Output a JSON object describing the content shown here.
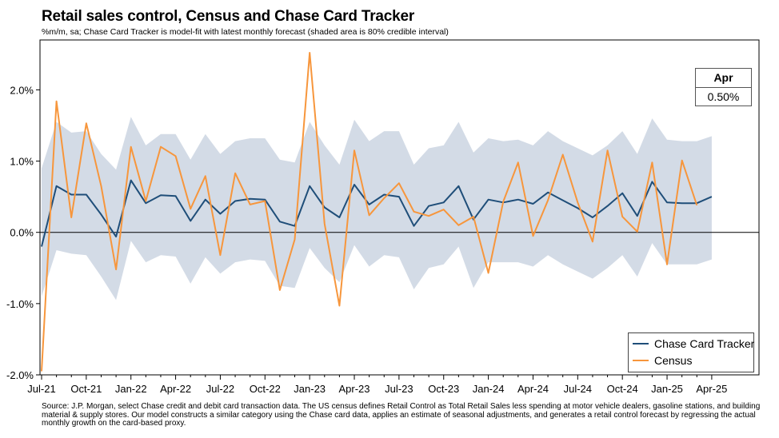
{
  "title": "Retail sales control, Census and Chase Card Tracker",
  "subtitle": "%m/m, sa; Chase Card Tracker is model-fit with latest monthly forecast (shaded area is 80% credible interval)",
  "source": "Source: J.P. Morgan, select Chase credit and debit card transaction data. The US census defines Retail Control as Total Retail Sales less spending at motor vehicle dealers, gasoline stations, and building material & supply stores. Our model constructs a similar category using the Chase card data, applies an estimate of seasonal adjustments, and generates a retail control forecast by regressing the actual monthly growth on the card-based proxy.",
  "callout": {
    "label": "Apr",
    "value": "0.50%"
  },
  "legend": {
    "tracker": "Chase Card Tracker",
    "census": "Census"
  },
  "colors": {
    "tracker": "#1f4e79",
    "census": "#f7963c",
    "band": "#d3dbe6"
  },
  "chart_data": {
    "type": "line",
    "title": "Retail sales control, Census and Chase Card Tracker",
    "subtitle": "%m/m, sa; Chase Card Tracker is model-fit with latest monthly forecast (shaded area is 80% credible interval)",
    "xlabel": "",
    "ylabel": "",
    "ylim": [
      -2.0,
      2.7
    ],
    "yticks": [
      -2.0,
      -1.0,
      0.0,
      1.0,
      2.0
    ],
    "ytick_labels": [
      "-2.0%",
      "-1.0%",
      "0.0%",
      "1.0%",
      "2.0%"
    ],
    "xtick_labels": [
      "Jul-21",
      "Oct-21",
      "Jan-22",
      "Apr-22",
      "Jul-22",
      "Oct-22",
      "Jan-23",
      "Apr-23",
      "Jul-23",
      "Oct-23",
      "Jan-24",
      "Apr-24",
      "Jul-24",
      "Oct-24",
      "Jan-25",
      "Apr-25"
    ],
    "x": [
      "Jul-21",
      "Aug-21",
      "Sep-21",
      "Oct-21",
      "Nov-21",
      "Dec-21",
      "Jan-22",
      "Feb-22",
      "Mar-22",
      "Apr-22",
      "May-22",
      "Jun-22",
      "Jul-22",
      "Aug-22",
      "Sep-22",
      "Oct-22",
      "Nov-22",
      "Dec-22",
      "Jan-23",
      "Feb-23",
      "Mar-23",
      "Apr-23",
      "May-23",
      "Jun-23",
      "Jul-23",
      "Aug-23",
      "Sep-23",
      "Oct-23",
      "Nov-23",
      "Dec-23",
      "Jan-24",
      "Feb-24",
      "Mar-24",
      "Apr-24",
      "May-24",
      "Jun-24",
      "Jul-24",
      "Aug-24",
      "Sep-24",
      "Oct-24",
      "Nov-24",
      "Dec-24",
      "Jan-25",
      "Feb-25",
      "Mar-25",
      "Apr-25"
    ],
    "series": [
      {
        "name": "Chase Card Tracker",
        "values": [
          -0.2,
          0.65,
          0.53,
          0.53,
          0.25,
          -0.06,
          0.73,
          0.41,
          0.52,
          0.51,
          0.16,
          0.46,
          0.26,
          0.44,
          0.47,
          0.46,
          0.15,
          0.09,
          0.65,
          0.35,
          0.21,
          0.67,
          0.39,
          0.53,
          0.5,
          0.09,
          0.37,
          0.42,
          0.65,
          0.18,
          0.46,
          0.42,
          0.46,
          0.4,
          0.56,
          0.45,
          0.34,
          0.21,
          0.37,
          0.55,
          0.23,
          0.71,
          0.42,
          0.41,
          0.41,
          0.5
        ]
      },
      {
        "name": "Census",
        "values": [
          -1.95,
          1.84,
          0.21,
          1.53,
          0.65,
          -0.52,
          1.2,
          0.44,
          1.2,
          1.07,
          0.33,
          0.79,
          -0.32,
          0.83,
          0.39,
          0.44,
          -0.81,
          -0.1,
          2.52,
          0.12,
          -1.03,
          1.15,
          0.24,
          0.48,
          0.69,
          0.29,
          0.23,
          0.32,
          0.1,
          0.22,
          -0.57,
          0.43,
          0.98,
          -0.05,
          0.45,
          1.09,
          0.42,
          -0.13,
          1.15,
          0.22,
          0.01,
          0.98,
          -0.45,
          1.01,
          0.38,
          null
        ]
      }
    ],
    "band": {
      "name": "80% credible interval",
      "upper": [
        0.9,
        1.55,
        1.4,
        1.42,
        1.1,
        0.88,
        1.62,
        1.22,
        1.38,
        1.38,
        1.02,
        1.38,
        1.1,
        1.28,
        1.32,
        1.32,
        1.02,
        0.98,
        1.55,
        1.22,
        0.95,
        1.58,
        1.28,
        1.42,
        1.42,
        0.95,
        1.18,
        1.22,
        1.55,
        1.12,
        1.32,
        1.28,
        1.3,
        1.22,
        1.42,
        1.28,
        1.18,
        1.08,
        1.22,
        1.42,
        1.1,
        1.6,
        1.3,
        1.28,
        1.28,
        1.35
      ],
      "lower": [
        -0.9,
        -0.25,
        -0.3,
        -0.32,
        -0.62,
        -0.95,
        -0.12,
        -0.42,
        -0.32,
        -0.34,
        -0.72,
        -0.35,
        -0.58,
        -0.42,
        -0.38,
        -0.4,
        -0.75,
        -0.78,
        -0.22,
        -0.5,
        -0.7,
        -0.18,
        -0.48,
        -0.32,
        -0.35,
        -0.8,
        -0.5,
        -0.45,
        -0.2,
        -0.78,
        -0.42,
        -0.42,
        -0.42,
        -0.48,
        -0.32,
        -0.45,
        -0.55,
        -0.65,
        -0.5,
        -0.32,
        -0.62,
        -0.15,
        -0.45,
        -0.45,
        -0.45,
        -0.38
      ]
    },
    "grid": false,
    "legend_position": "bottom-right"
  }
}
